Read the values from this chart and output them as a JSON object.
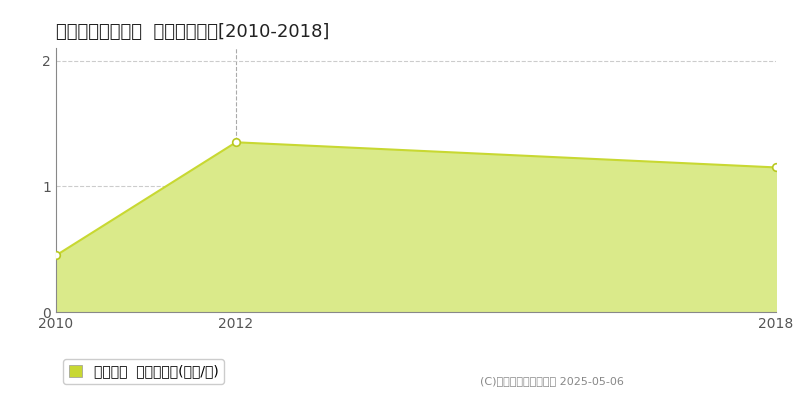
{
  "title": "磯城郡川西町梅戸  土地価格推移[2010-2018]",
  "x_values": [
    2010,
    2012,
    2018
  ],
  "y_values": [
    0.45,
    1.35,
    1.15
  ],
  "xlim": [
    2010,
    2018
  ],
  "ylim": [
    0,
    2.1
  ],
  "yticks": [
    0,
    1,
    2
  ],
  "xticks": [
    2010,
    2012,
    2018
  ],
  "line_color": "#c8d832",
  "fill_color": "#daea8a",
  "fill_alpha": 1.0,
  "marker_color": "#ffffff",
  "marker_edge_color": "#b8c820",
  "grid_color": "#cccccc",
  "vline_color": "#aaaaaa",
  "vline_x": 2012,
  "background_color": "#ffffff",
  "legend_label": "土地価格  平均坪単価(万円/坪)",
  "copyright_text": "(C)土地価格ドットコム 2025-05-06",
  "title_fontsize": 13,
  "axis_fontsize": 10,
  "legend_fontsize": 10
}
